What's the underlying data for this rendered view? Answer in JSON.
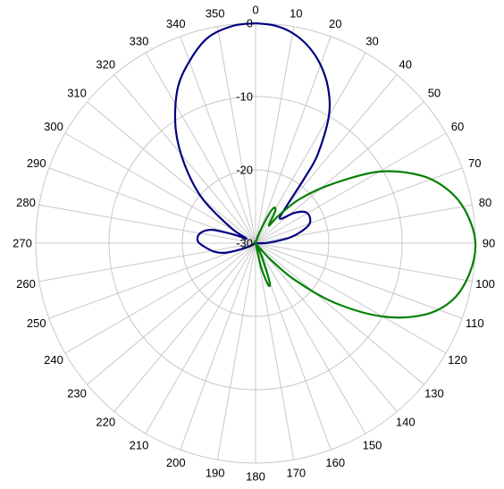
{
  "chart_data": {
    "type": "polar-line",
    "angle_unit": "degrees",
    "angle_direction": "clockwise",
    "zero_direction": "top",
    "angle_ticks": [
      0,
      10,
      20,
      30,
      40,
      50,
      60,
      70,
      80,
      90,
      100,
      110,
      120,
      130,
      140,
      150,
      160,
      170,
      180,
      190,
      200,
      210,
      220,
      230,
      240,
      250,
      260,
      270,
      280,
      290,
      300,
      310,
      320,
      330,
      340,
      350
    ],
    "angle_tick_labels": [
      "0",
      "10",
      "20",
      "30",
      "40",
      "50",
      "60",
      "70",
      "80",
      "90",
      "100",
      "110",
      "120",
      "130",
      "140",
      "150",
      "160",
      "170",
      "180",
      "190",
      "200",
      "210",
      "220",
      "230",
      "240",
      "250",
      "260",
      "270",
      "280",
      "290",
      "300",
      "310",
      "320",
      "330",
      "340",
      "350"
    ],
    "radial_ticks": [
      0,
      -10,
      -20,
      -30
    ],
    "radial_tick_labels": [
      "0",
      "-10",
      "-20",
      "-30"
    ],
    "r_range": [
      -30,
      0
    ],
    "grid_rings_db": [
      -30,
      -20,
      -10,
      0
    ],
    "grid": true,
    "legend": "none",
    "series": [
      {
        "color": "#000080",
        "points": [
          [
            0,
            0
          ],
          [
            5,
            -0.2
          ],
          [
            10,
            -0.9
          ],
          [
            15,
            -2.2
          ],
          [
            20,
            -4.1
          ],
          [
            25,
            -6.6
          ],
          [
            30,
            -10
          ],
          [
            35,
            -15.2
          ],
          [
            37,
            -19
          ],
          [
            40,
            -23.5
          ],
          [
            45,
            -25.3
          ],
          [
            52,
            -23.3
          ],
          [
            58,
            -22.0
          ],
          [
            65,
            -21.8
          ],
          [
            72,
            -22.5
          ],
          [
            80,
            -25.0
          ],
          [
            88,
            -28.2
          ],
          [
            95,
            -30
          ],
          [
            120,
            -30
          ],
          [
            170,
            -30
          ],
          [
            210,
            -30
          ],
          [
            230,
            -30
          ],
          [
            245,
            -28.5
          ],
          [
            252,
            -25.8
          ],
          [
            258,
            -24.3
          ],
          [
            266,
            -23.0
          ],
          [
            272,
            -22.1
          ],
          [
            280,
            -22.3
          ],
          [
            287,
            -23.8
          ],
          [
            292,
            -27.0
          ],
          [
            297,
            -28.6
          ],
          [
            302,
            -26.0
          ],
          [
            310,
            -20.5
          ],
          [
            318,
            -15.5
          ],
          [
            325,
            -11.0
          ],
          [
            333,
            -6.5
          ],
          [
            340,
            -3.6
          ],
          [
            347,
            -1.2
          ],
          [
            354,
            -0.2
          ],
          [
            360,
            0
          ]
        ]
      },
      {
        "color": "#008000",
        "points": [
          [
            0,
            -30
          ],
          [
            15,
            -30
          ],
          [
            20,
            -28.5
          ],
          [
            25,
            -25.5
          ],
          [
            28,
            -24.5
          ],
          [
            32,
            -25.0
          ],
          [
            37,
            -27.0
          ],
          [
            40,
            -25.0
          ],
          [
            45,
            -21.5
          ],
          [
            52,
            -17.0
          ],
          [
            60,
            -10.5
          ],
          [
            68,
            -5.5
          ],
          [
            75,
            -2.6
          ],
          [
            82,
            -0.9
          ],
          [
            90,
            0
          ],
          [
            98,
            -0.5
          ],
          [
            106,
            -2.0
          ],
          [
            113,
            -5.0
          ],
          [
            120,
            -10.0
          ],
          [
            127,
            -16.5
          ],
          [
            133,
            -22.5
          ],
          [
            137,
            -26.5
          ],
          [
            140,
            -29.0
          ],
          [
            145,
            -30
          ],
          [
            150,
            -30
          ],
          [
            155,
            -28.0
          ],
          [
            160,
            -24.5
          ],
          [
            163,
            -24.0
          ],
          [
            167,
            -26.5
          ],
          [
            170,
            -30
          ],
          [
            360,
            -30
          ]
        ]
      }
    ]
  }
}
